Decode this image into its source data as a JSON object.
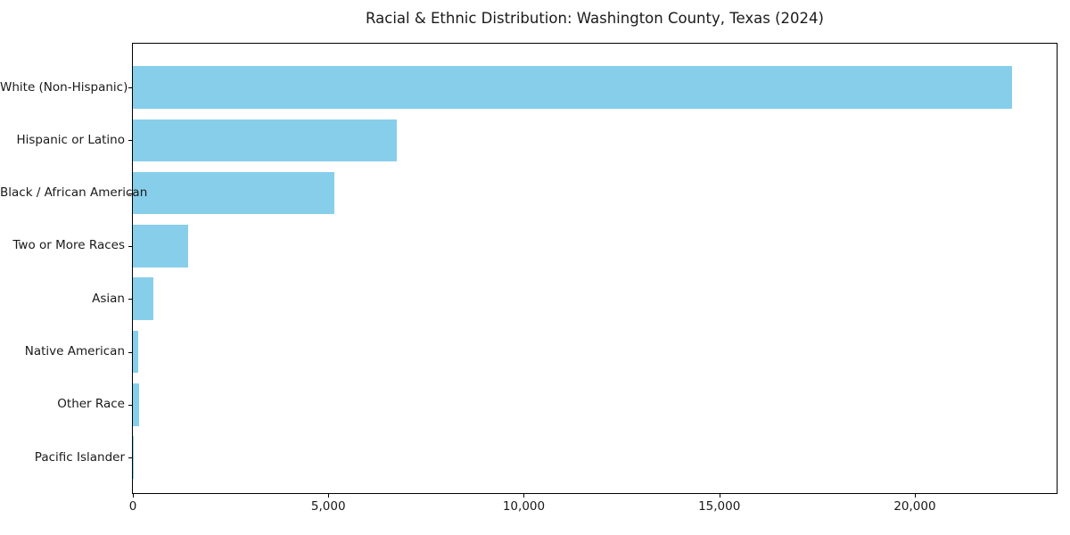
{
  "chart_data": {
    "type": "bar",
    "orientation": "horizontal",
    "title": "Racial & Ethnic Distribution: Washington County, Texas (2024)",
    "categories": [
      "White (Non-Hispanic)",
      "Hispanic or Latino",
      "Black / African American",
      "Two or More Races",
      "Asian",
      "Native American",
      "Other Race",
      "Pacific Islander"
    ],
    "values": [
      22480,
      6750,
      5160,
      1410,
      520,
      130,
      150,
      10
    ],
    "xlabel": "",
    "ylabel": "",
    "xlim": [
      0,
      23650
    ],
    "x_ticks": [
      0,
      5000,
      10000,
      15000,
      20000
    ],
    "x_tick_labels": [
      "0",
      "5,000",
      "10,000",
      "15,000",
      "20,000"
    ],
    "bar_color": "#87CEEB",
    "text_color": "#1a1a1a",
    "axis_color": "#000000",
    "background_color": "#ffffff",
    "grid": false,
    "legend": "none"
  }
}
